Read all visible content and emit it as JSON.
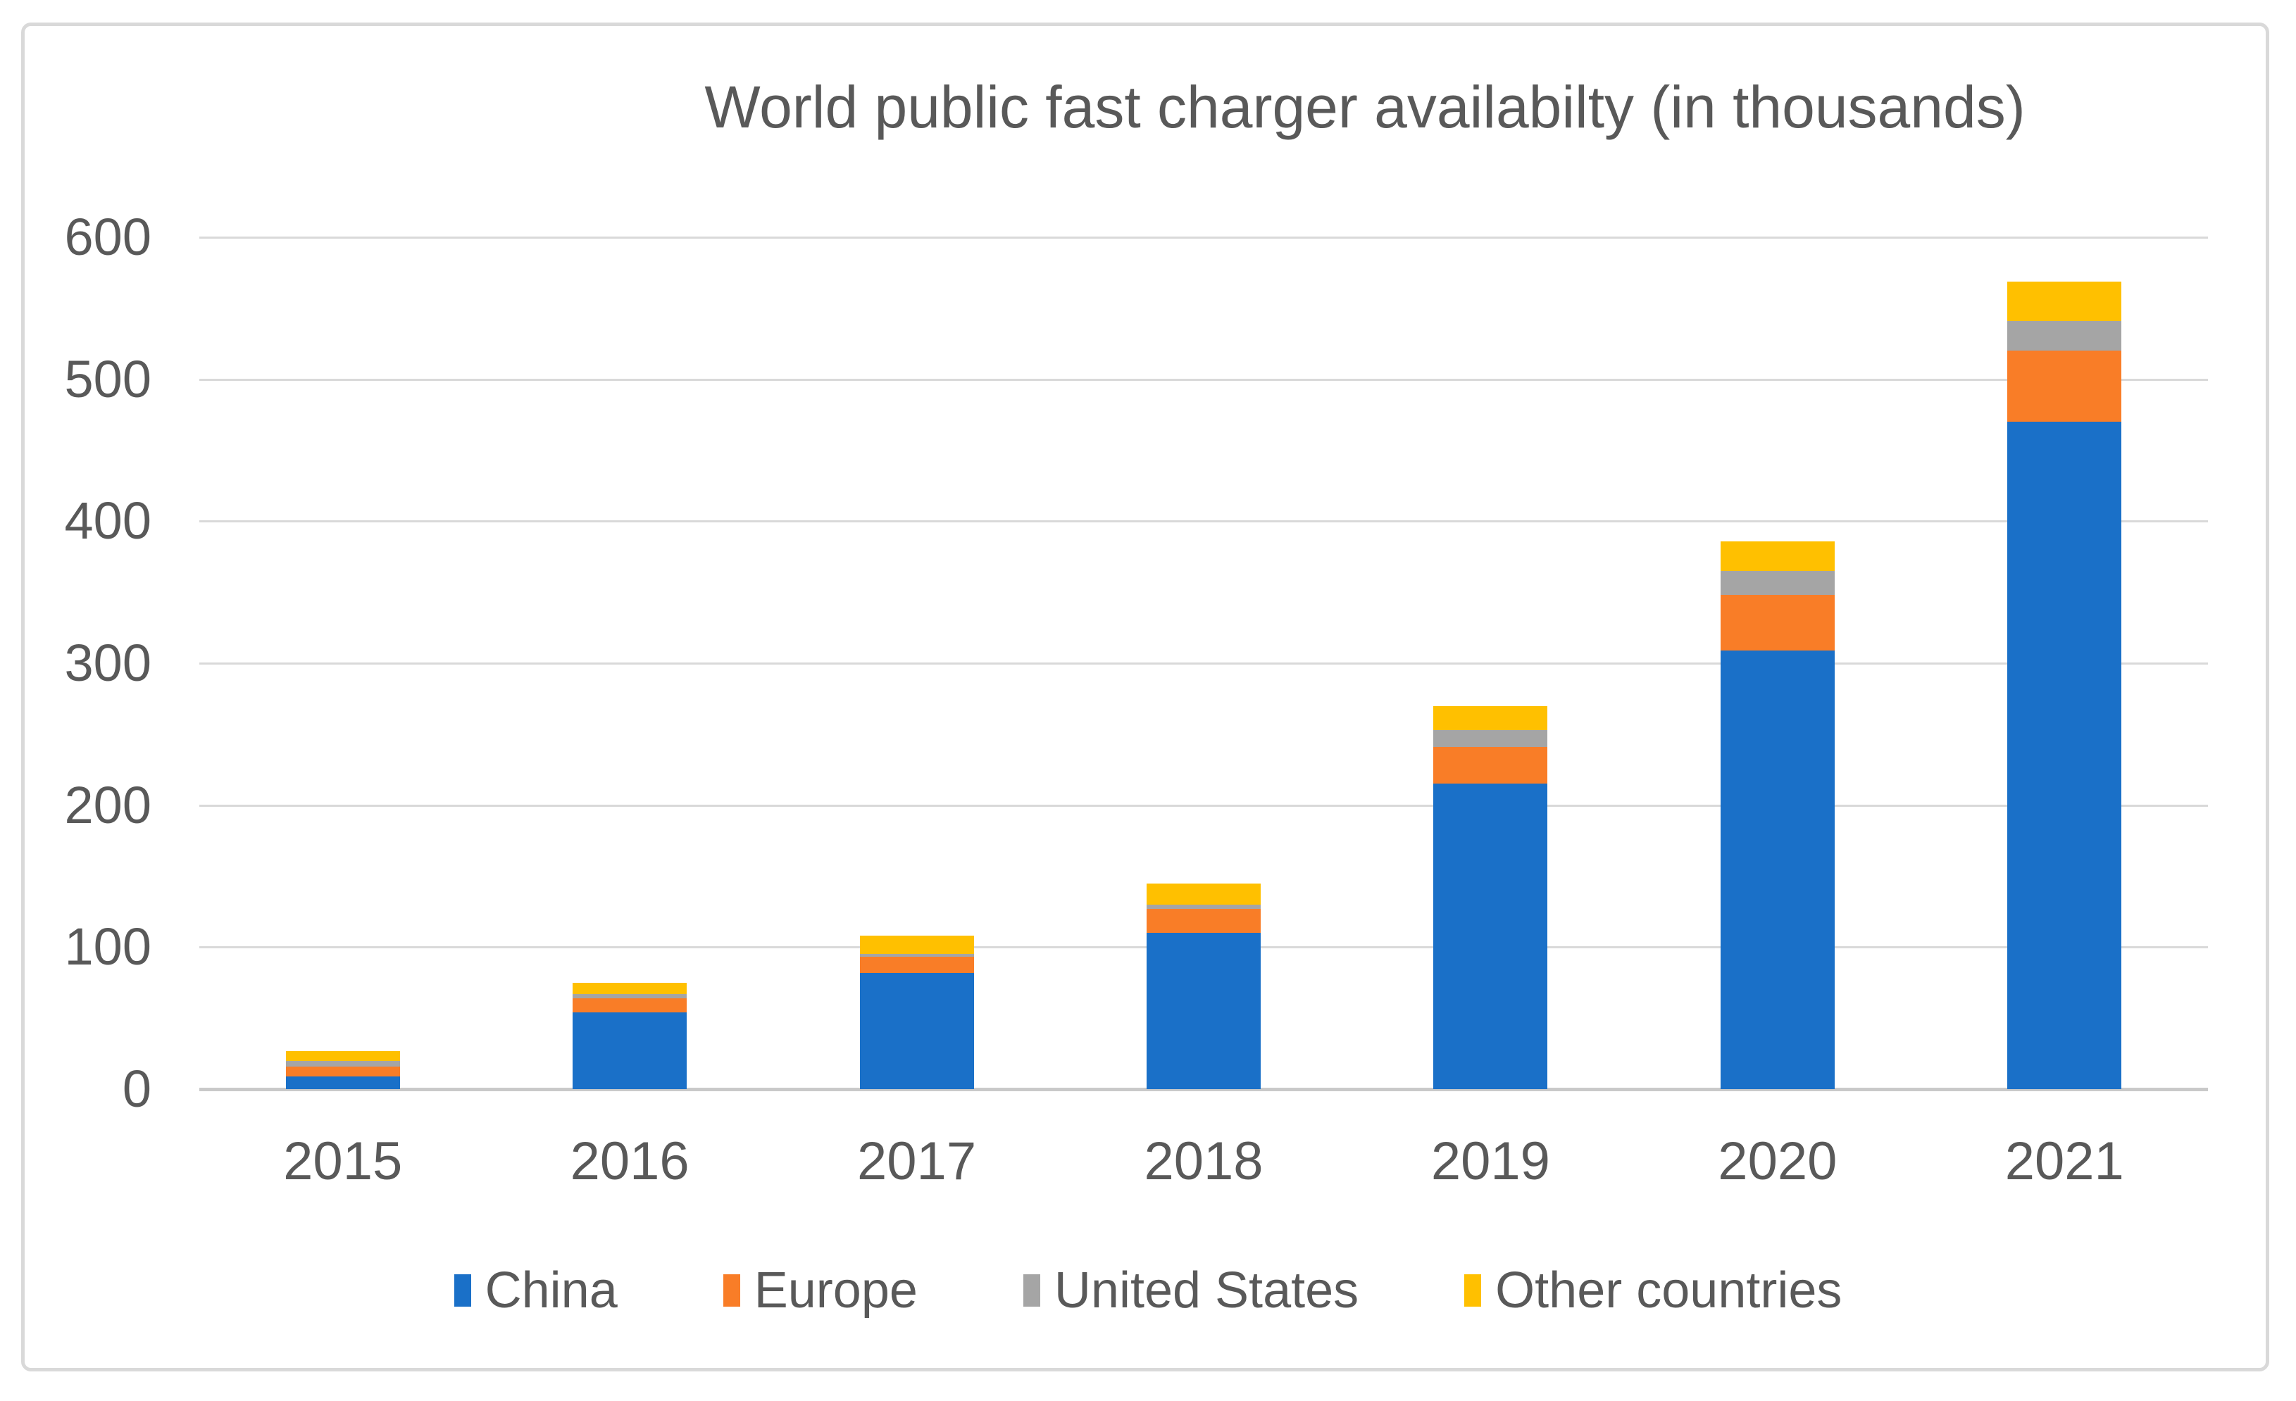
{
  "chart_data": {
    "type": "bar",
    "stacked": true,
    "title": "World public fast charger availabilty (in thousands)",
    "categories": [
      "2015",
      "2016",
      "2017",
      "2018",
      "2019",
      "2020",
      "2021"
    ],
    "series": [
      {
        "name": "China",
        "color": "#1a70c8",
        "values": [
          9,
          54,
          82,
          110,
          215,
          309,
          470
        ]
      },
      {
        "name": "Europe",
        "color": "#f97d27",
        "values": [
          7,
          10,
          11,
          17,
          26,
          39,
          50
        ]
      },
      {
        "name": "United States",
        "color": "#a5a5a5",
        "values": [
          4,
          3,
          2,
          3,
          12,
          17,
          21
        ]
      },
      {
        "name": "Other countries",
        "color": "#ffc000",
        "values": [
          7,
          8,
          13,
          15,
          17,
          21,
          28
        ]
      }
    ],
    "xlabel": "",
    "ylabel": "",
    "ylim": [
      0,
      600
    ],
    "yticks": [
      0,
      100,
      200,
      300,
      400,
      500,
      600
    ],
    "grid": true,
    "legend_position": "bottom",
    "colors": {
      "axis_text": "#595959",
      "gridline": "#d9d9d9",
      "axis_line": "#c9c9c9",
      "chart_border": "#d9d9d9",
      "background": "#ffffff"
    }
  }
}
